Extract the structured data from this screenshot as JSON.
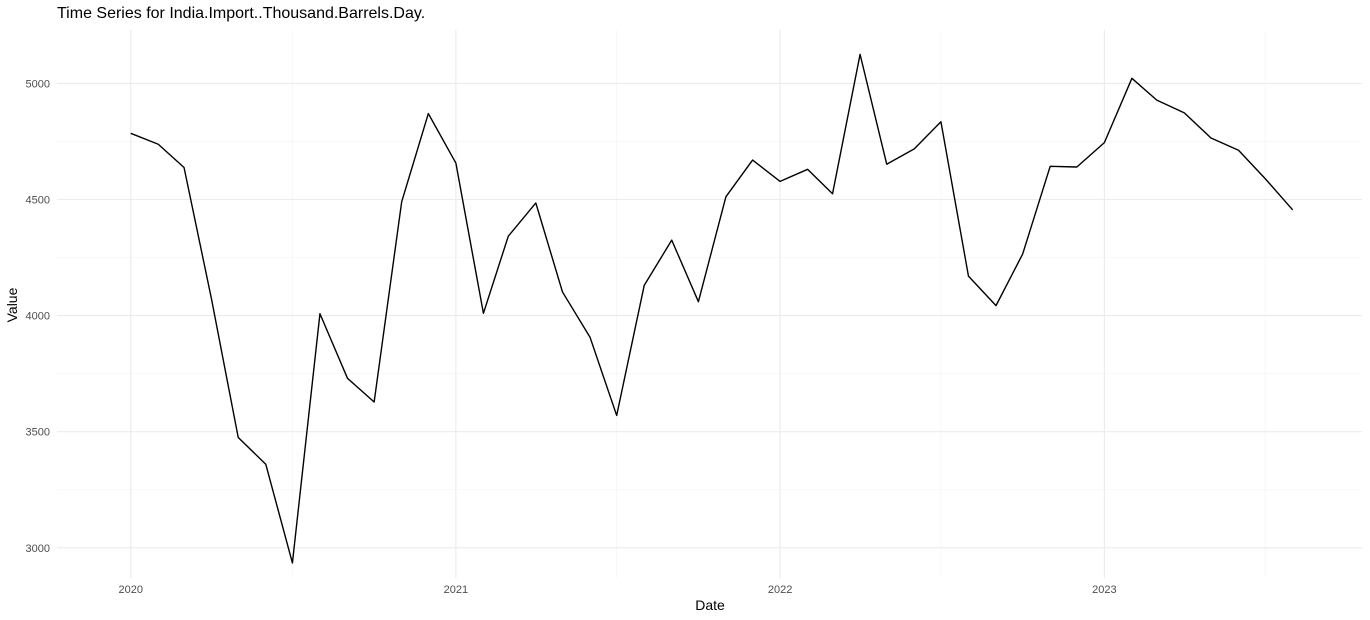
{
  "chart_data": {
    "type": "line",
    "title": "Time Series for India.Import..Thousand.Barrels.Day.",
    "xlabel": "Date",
    "ylabel": "Value",
    "x_ticks": [
      "2020",
      "2021",
      "2022",
      "2023"
    ],
    "y_ticks": [
      3000,
      3500,
      4000,
      4500,
      5000
    ],
    "ylim": [
      2870,
      5230
    ],
    "xlim": [
      "2019-10-10",
      "2023-10-18"
    ],
    "grid": true,
    "line_color": "#000000",
    "series": [
      {
        "x": [
          "2020-01-01",
          "2020-02-01",
          "2020-03-01",
          "2020-04-01",
          "2020-05-01",
          "2020-06-01",
          "2020-07-01",
          "2020-08-01",
          "2020-09-01",
          "2020-10-01",
          "2020-11-01",
          "2020-12-01",
          "2021-01-01",
          "2021-02-01",
          "2021-03-01",
          "2021-04-01",
          "2021-05-01",
          "2021-06-01",
          "2021-07-01",
          "2021-08-01",
          "2021-09-01",
          "2021-10-01",
          "2021-11-01",
          "2021-12-01",
          "2022-01-01",
          "2022-02-01",
          "2022-03-01",
          "2022-04-01",
          "2022-05-01",
          "2022-06-01",
          "2022-07-01",
          "2022-08-01",
          "2022-09-01",
          "2022-10-01",
          "2022-11-01",
          "2022-12-01",
          "2023-01-01",
          "2023-02-01",
          "2023-03-01",
          "2023-04-01",
          "2023-05-01",
          "2023-06-01",
          "2023-07-01",
          "2023-08-01"
        ],
        "values": [
          4785,
          4738,
          4638,
          4070,
          3475,
          3360,
          2935,
          4008,
          3730,
          3628,
          4490,
          4870,
          4657,
          4010,
          4342,
          4485,
          4102,
          3907,
          3570,
          4130,
          4325,
          4060,
          4512,
          4670,
          4578,
          4630,
          4525,
          5125,
          4652,
          4718,
          4835,
          4170,
          4043,
          4265,
          4643,
          4640,
          4745,
          5022,
          4928,
          4873,
          4765,
          4712,
          4590,
          4455
        ]
      }
    ]
  }
}
